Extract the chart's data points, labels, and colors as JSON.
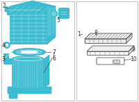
{
  "bg_color": "#ffffff",
  "border_color": "#aaaaaa",
  "part_color": "#3bbcd0",
  "dark_color": "#2a9aae",
  "line_color": "#555555",
  "label_color": "#333333",
  "fig_width": 2.0,
  "fig_height": 1.47,
  "dpi": 100
}
